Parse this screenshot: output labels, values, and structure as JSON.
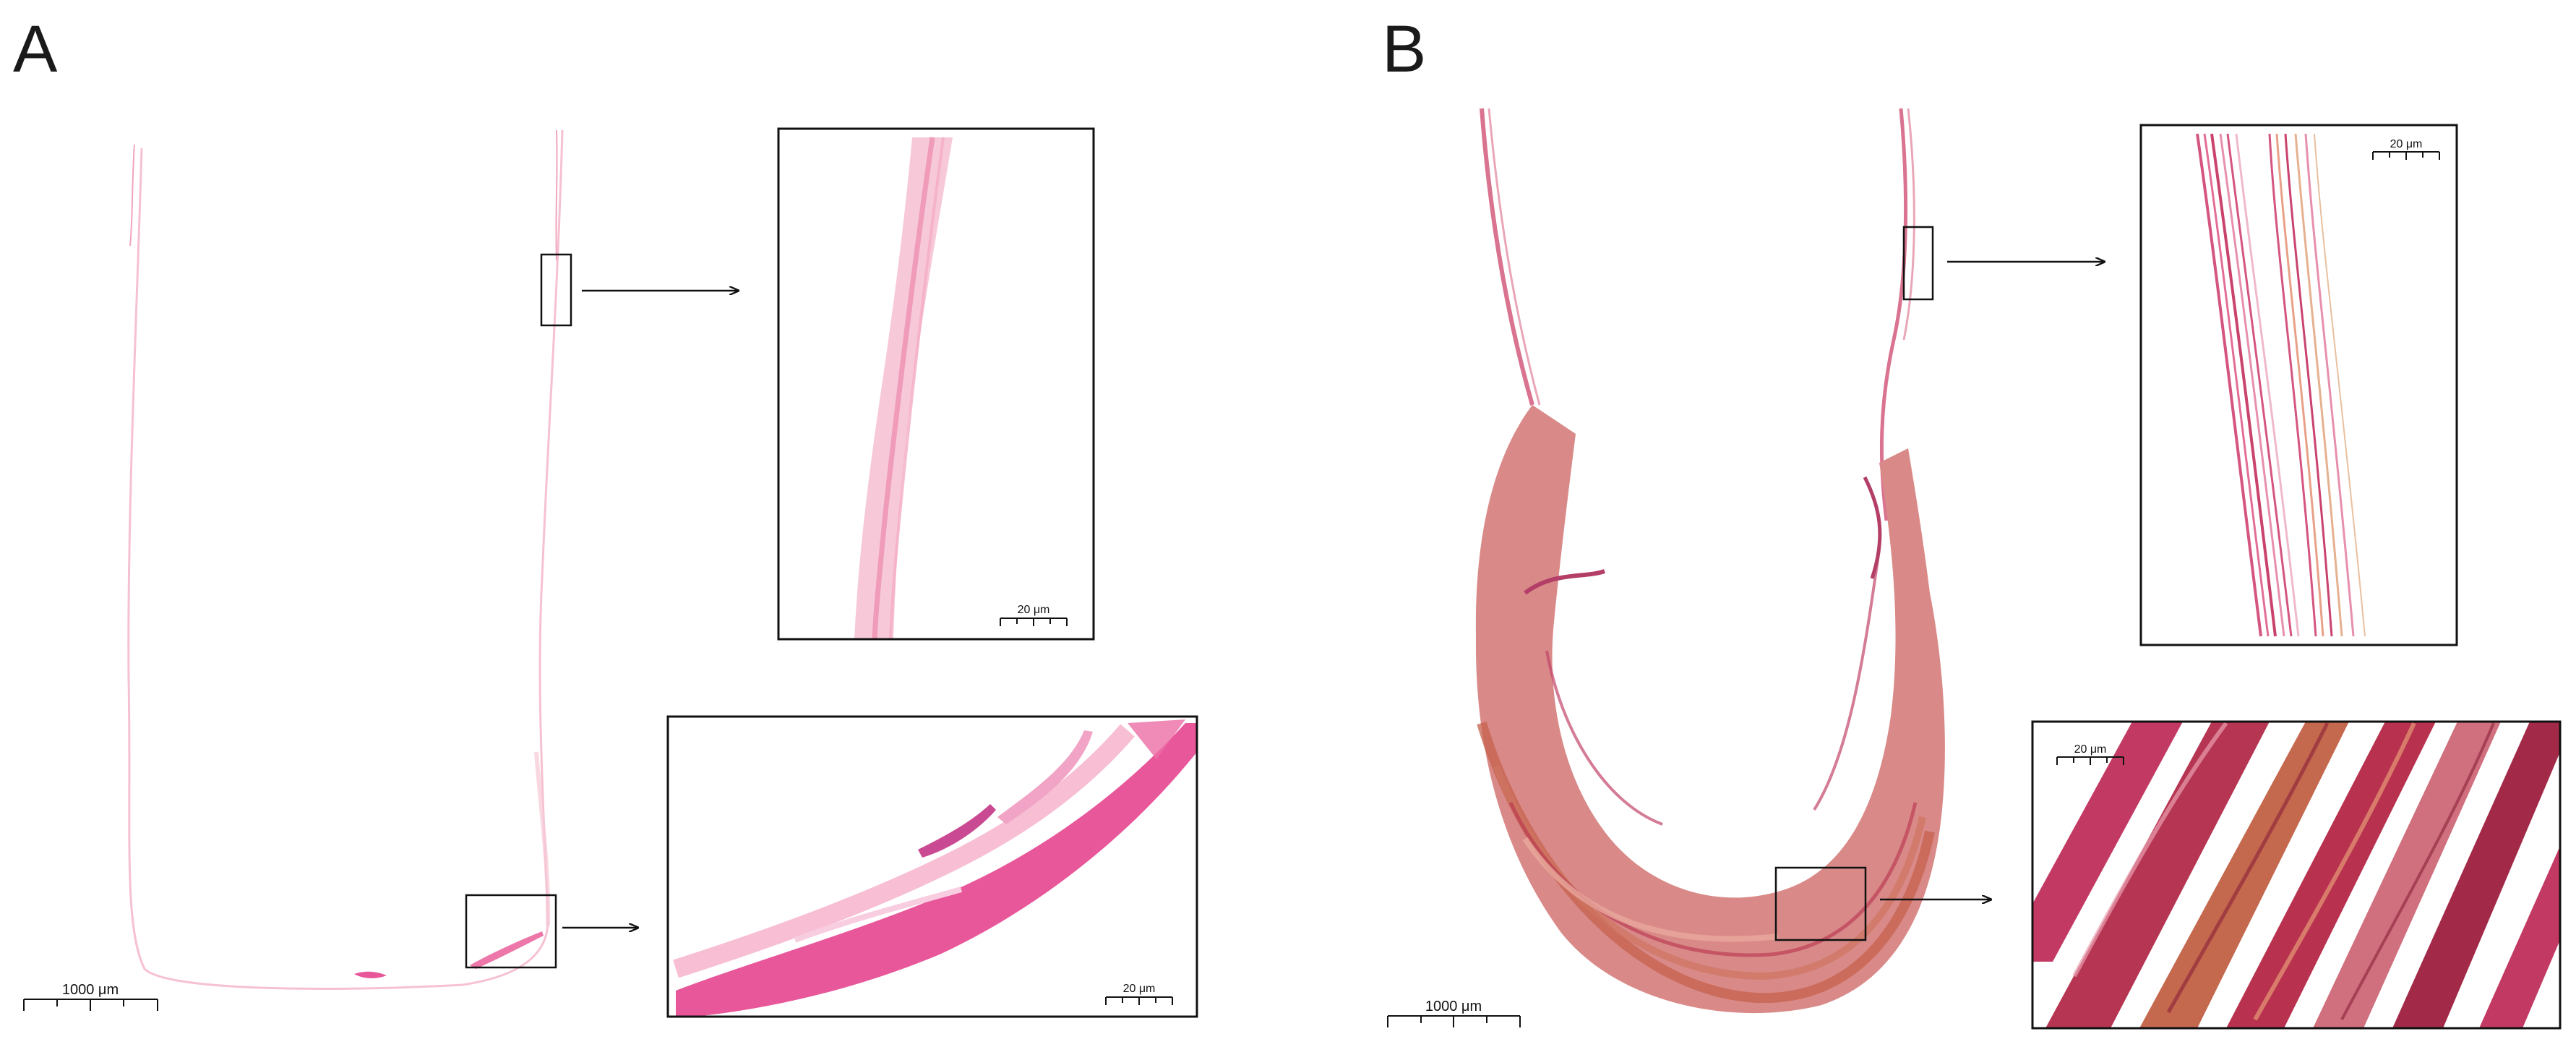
{
  "panels": {
    "a": {
      "label": "A",
      "overview_scale": "1000 μm",
      "inset_top_scale": "20 μm",
      "inset_bottom_scale": "20 μm"
    },
    "b": {
      "label": "B",
      "overview_scale": "1000 μm",
      "inset_top_scale": "20 μm",
      "inset_bottom_scale": "20 μm"
    }
  },
  "colors": {
    "pale_stain": "#f4b6c8",
    "eosin": "#e8579a",
    "deep_tissue": "#b8324f",
    "brown_tissue": "#c06a52",
    "frame": "#111111",
    "background": "#ffffff"
  }
}
